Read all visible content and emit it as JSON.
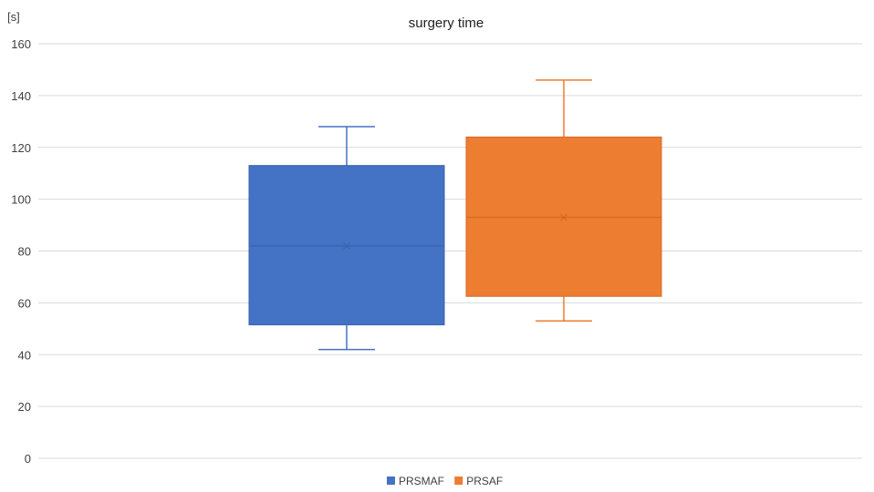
{
  "chart_data": {
    "type": "box",
    "title": "surgery time",
    "ylabel": "[s]",
    "ylim": [
      0,
      160
    ],
    "yticks": [
      0,
      20,
      40,
      60,
      80,
      100,
      120,
      140,
      160
    ],
    "grid": true,
    "legend_position": "bottom",
    "series": [
      {
        "name": "PRSMAF",
        "color": "#4472C4",
        "min": 42,
        "q1": 51.5,
        "median": 82,
        "mean": 82,
        "q3": 113,
        "max": 128
      },
      {
        "name": "PRSAF",
        "color": "#ED7D31",
        "min": 53,
        "q1": 62.5,
        "median": 93,
        "mean": 93,
        "q3": 124,
        "max": 146
      }
    ]
  }
}
